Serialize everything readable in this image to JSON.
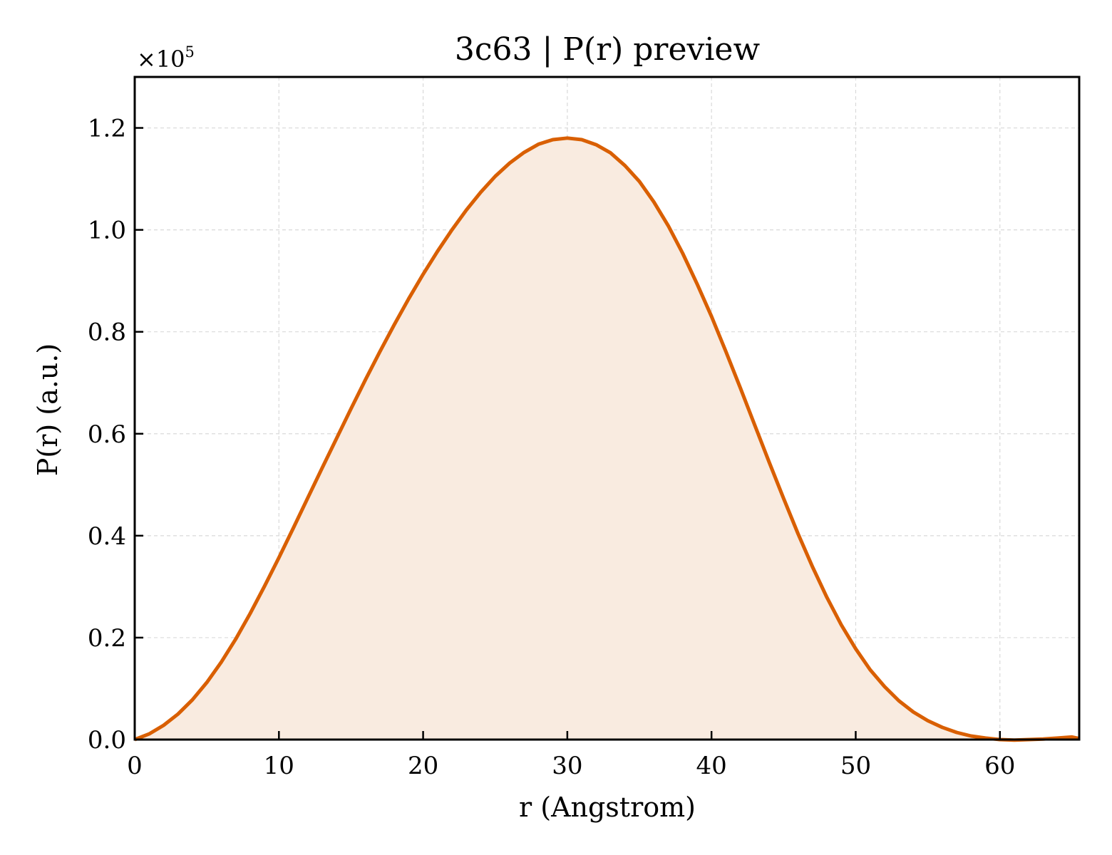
{
  "chart_data": {
    "type": "area",
    "title": "3c63 | P(r) preview",
    "xlabel": "r (Angstrom)",
    "ylabel": "P(r) (a.u.)",
    "y_multiplier_base": "×10",
    "y_multiplier_exp": "5",
    "xlim": [
      0,
      65.5
    ],
    "ylim": [
      0,
      1.3
    ],
    "x_ticks": [
      0,
      10,
      20,
      30,
      40,
      50,
      60
    ],
    "x_tick_labels": [
      "0",
      "10",
      "20",
      "30",
      "40",
      "50",
      "60"
    ],
    "y_ticks": [
      0,
      0.2,
      0.4,
      0.6,
      0.8,
      1.0,
      1.2
    ],
    "y_tick_labels": [
      "0.0",
      "0.2",
      "0.4",
      "0.6",
      "0.8",
      "1.0",
      "1.2"
    ],
    "grid": true,
    "colors": {
      "line": "#d95f02",
      "fill": "#f9ebe0",
      "grid": "#d9d9d9"
    },
    "series": [
      {
        "x": [
          0,
          1,
          2,
          3,
          4,
          5,
          6,
          7,
          8,
          9,
          10,
          11,
          12,
          13,
          14,
          15,
          16,
          17,
          18,
          19,
          20,
          21,
          22,
          23,
          24,
          25,
          26,
          27,
          28,
          29,
          30,
          31,
          32,
          33,
          34,
          35,
          36,
          37,
          38,
          39,
          40,
          41,
          42,
          43,
          44,
          45,
          46,
          47,
          48,
          49,
          50,
          51,
          52,
          53,
          54,
          55,
          56,
          57,
          58,
          59,
          60,
          61,
          62,
          63,
          64,
          65,
          65.5
        ],
        "y": [
          0.0,
          0.011,
          0.028,
          0.05,
          0.078,
          0.112,
          0.152,
          0.197,
          0.247,
          0.301,
          0.357,
          0.415,
          0.474,
          0.533,
          0.591,
          0.649,
          0.706,
          0.761,
          0.814,
          0.865,
          0.913,
          0.958,
          1.0,
          1.039,
          1.074,
          1.105,
          1.131,
          1.152,
          1.168,
          1.177,
          1.18,
          1.177,
          1.167,
          1.151,
          1.126,
          1.095,
          1.055,
          1.008,
          0.954,
          0.894,
          0.83,
          0.761,
          0.69,
          0.617,
          0.544,
          0.473,
          0.404,
          0.339,
          0.279,
          0.225,
          0.178,
          0.137,
          0.104,
          0.076,
          0.054,
          0.037,
          0.024,
          0.014,
          0.007,
          0.003,
          0.0,
          -0.001,
          0.0,
          0.001,
          0.003,
          0.005,
          0.002
        ]
      }
    ]
  }
}
